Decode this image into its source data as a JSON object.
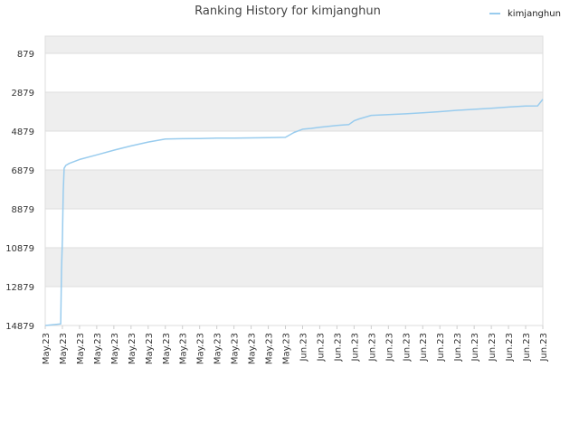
{
  "chart_data": {
    "type": "line",
    "title": "Ranking History for kimjanghun",
    "xlabel": "",
    "ylabel": "",
    "y_inverted": true,
    "ylim": [
      879,
      14879
    ],
    "yticks": [
      879,
      2879,
      4879,
      6879,
      8879,
      10879,
      12879,
      14879
    ],
    "grid": true,
    "legend_position": "top-right",
    "x_tick_labels": [
      "May.23",
      "May.23",
      "May.23",
      "May.23",
      "May.23",
      "May.23",
      "May.23",
      "May.23",
      "May.23",
      "May.23",
      "May.23",
      "May.23",
      "May.23",
      "May.23",
      "May.23",
      "Jun.23",
      "Jun.23",
      "Jun.23",
      "Jun.23",
      "Jun.23",
      "Jun.23",
      "Jun.23",
      "Jun.23",
      "Jun.23",
      "Jun.23",
      "Jun.23",
      "Jun.23",
      "Jun.23",
      "Jun.23",
      "Jun.23"
    ],
    "x_range": [
      0,
      29
    ],
    "series": [
      {
        "name": "kimjanghun",
        "color": "#99ccee",
        "x": [
          0,
          0.9,
          0.95,
          1.0,
          1.05,
          1.1,
          1.2,
          1.4,
          2,
          3,
          4,
          5,
          6,
          7,
          8,
          9,
          10,
          11,
          12,
          13,
          14,
          14.5,
          15,
          15.5,
          16,
          17,
          17.7,
          18,
          18.3,
          19,
          20,
          21,
          22,
          23,
          24,
          25,
          26,
          27,
          28,
          28.7,
          29
        ],
        "y": [
          14879,
          14800,
          12000,
          10400,
          8000,
          6790,
          6640,
          6540,
          6340,
          6100,
          5860,
          5640,
          5440,
          5290,
          5270,
          5260,
          5240,
          5240,
          5230,
          5220,
          5200,
          4950,
          4780,
          4740,
          4680,
          4590,
          4540,
          4350,
          4250,
          4070,
          4030,
          3990,
          3940,
          3880,
          3810,
          3760,
          3700,
          3640,
          3590,
          3580,
          3240
        ]
      }
    ]
  }
}
